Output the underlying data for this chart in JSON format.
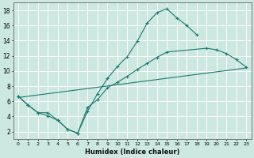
{
  "xlabel": "Humidex (Indice chaleur)",
  "bg_color": "#cce8e0",
  "grid_color": "#ffffff",
  "line_color": "#1a7a6e",
  "xlim": [
    -0.5,
    23.5
  ],
  "ylim": [
    1,
    19
  ],
  "xticks": [
    0,
    1,
    2,
    3,
    4,
    5,
    6,
    7,
    8,
    9,
    10,
    11,
    12,
    13,
    14,
    15,
    16,
    17,
    18,
    19,
    20,
    21,
    22,
    23
  ],
  "yticks": [
    2,
    4,
    6,
    8,
    10,
    12,
    14,
    16,
    18
  ],
  "line1_x": [
    0,
    1,
    2,
    3,
    4,
    5,
    6,
    7,
    8,
    9,
    10,
    11,
    12,
    13,
    14,
    15,
    16,
    17,
    18
  ],
  "line1_y": [
    6.7,
    5.5,
    4.5,
    4.1,
    3.5,
    2.3,
    1.8,
    4.7,
    7.0,
    9.0,
    10.6,
    11.9,
    13.9,
    16.3,
    17.7,
    18.2,
    17.0,
    16.0,
    14.8
  ],
  "line2_x": [
    0,
    1,
    2,
    3,
    4,
    5,
    6,
    7,
    8,
    9,
    10,
    11,
    12,
    13,
    14,
    15,
    19,
    20,
    21,
    22,
    23
  ],
  "line2_y": [
    6.7,
    5.5,
    4.5,
    4.5,
    3.5,
    2.3,
    1.8,
    5.2,
    6.2,
    7.8,
    8.5,
    9.3,
    10.2,
    11.0,
    11.8,
    12.5,
    13.0,
    12.8,
    12.3,
    11.5,
    10.5
  ],
  "line3_x": [
    0,
    23
  ],
  "line3_y": [
    6.5,
    10.4
  ]
}
